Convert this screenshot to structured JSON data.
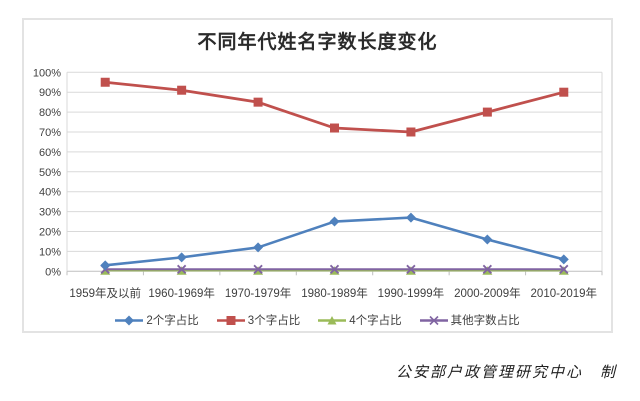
{
  "figure": {
    "credit": "公安部户政管理研究中心　制"
  },
  "chart_data": {
    "type": "line",
    "title": "不同年代姓名字数长度变化",
    "xlabel": "",
    "ylabel": "",
    "categories": [
      "1959年及以前",
      "1960-1969年",
      "1970-1979年",
      "1980-1989年",
      "1990-1999年",
      "2000-2009年",
      "2010-2019年"
    ],
    "series": [
      {
        "name": "2个字占比",
        "marker": "diamond",
        "color": "#4F81BD",
        "values": [
          3,
          7,
          12,
          25,
          27,
          16,
          6
        ]
      },
      {
        "name": "3个字占比",
        "marker": "square",
        "color": "#C0504D",
        "values": [
          95,
          91,
          85,
          72,
          70,
          80,
          90
        ]
      },
      {
        "name": "4个字占比",
        "marker": "triangle",
        "color": "#9BBB59",
        "values": [
          0.3,
          0.3,
          0.3,
          0.3,
          0.3,
          0.3,
          0.3
        ]
      },
      {
        "name": "其他字数占比",
        "marker": "x",
        "color": "#8064A2",
        "values": [
          1,
          1,
          1,
          1,
          1,
          1,
          1
        ]
      }
    ],
    "ylim": [
      0,
      100
    ],
    "y_tick_step": 10,
    "y_tick_suffix": "%",
    "grid": true,
    "legend_position": "bottom"
  },
  "colors": {
    "grid": "#D9D9D9",
    "axis": "#BFBFBF",
    "text": "#404040",
    "border": "#E3E3E3"
  }
}
